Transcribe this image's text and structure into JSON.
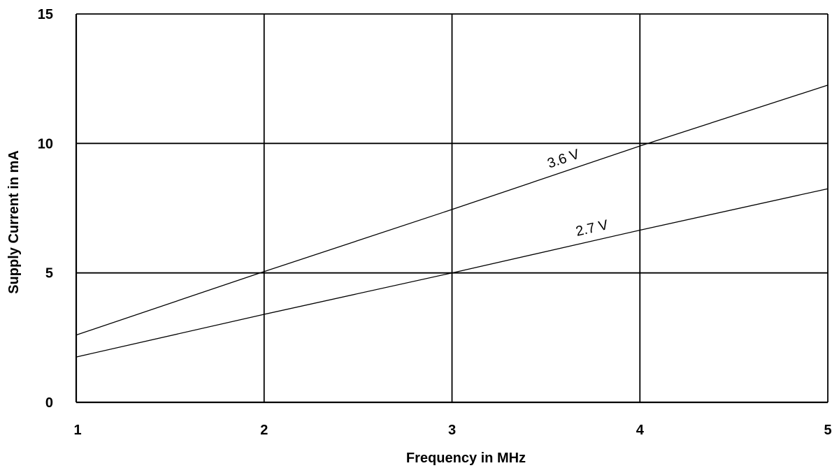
{
  "chart_data": {
    "type": "line",
    "title": "",
    "xlabel": "Frequency in MHz",
    "ylabel": "Supply Current in mA",
    "xlim": [
      1,
      5
    ],
    "ylim": [
      0,
      15
    ],
    "x_ticks": [
      "1",
      "2",
      "3",
      "4",
      "5"
    ],
    "y_ticks": [
      "0",
      "5",
      "10",
      "15"
    ],
    "grid": true,
    "series": [
      {
        "name": "3.6 V",
        "x": [
          1,
          2,
          3,
          4,
          5
        ],
        "y": [
          2.6,
          5.05,
          7.45,
          9.9,
          12.25
        ]
      },
      {
        "name": "2.7 V",
        "x": [
          1,
          2,
          3,
          4,
          5
        ],
        "y": [
          1.75,
          3.4,
          5.0,
          6.65,
          8.25
        ]
      }
    ]
  }
}
